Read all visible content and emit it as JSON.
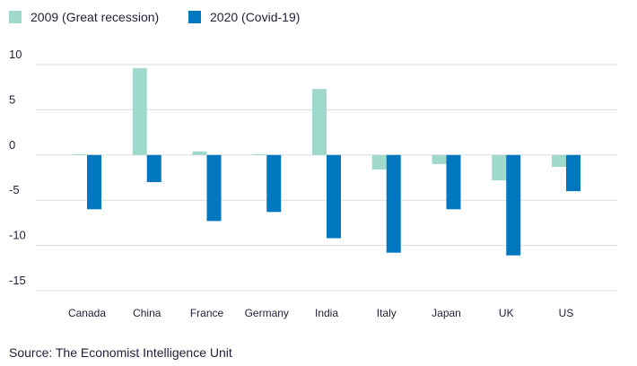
{
  "chart_data": {
    "type": "bar",
    "title": "",
    "xlabel": "",
    "ylabel": "",
    "categories": [
      "Canada",
      "China",
      "France",
      "Germany",
      "India",
      "Italy",
      "Japan",
      "UK",
      "US"
    ],
    "series": [
      {
        "name": "2009 (Great recession)",
        "color": "#9fd9cc",
        "values": [
          0.1,
          9.6,
          0.4,
          0.1,
          7.3,
          -1.6,
          -1.0,
          -2.8,
          -1.3
        ]
      },
      {
        "name": "2020 (Covid-19)",
        "color": "#0077be",
        "values": [
          -6.0,
          -3.0,
          -7.3,
          -6.3,
          -9.2,
          -10.8,
          -6.0,
          -11.1,
          -4.0
        ]
      }
    ],
    "ylim": [
      -15,
      10
    ],
    "yticks": [
      10,
      5,
      0,
      -5,
      -10,
      -15
    ],
    "yticks_labels": [
      "10",
      "5",
      "0",
      "-5",
      "-10",
      "-15"
    ],
    "grid": true,
    "legend_position": "top-left"
  },
  "source": "Source: The Economist Intelligence Unit"
}
